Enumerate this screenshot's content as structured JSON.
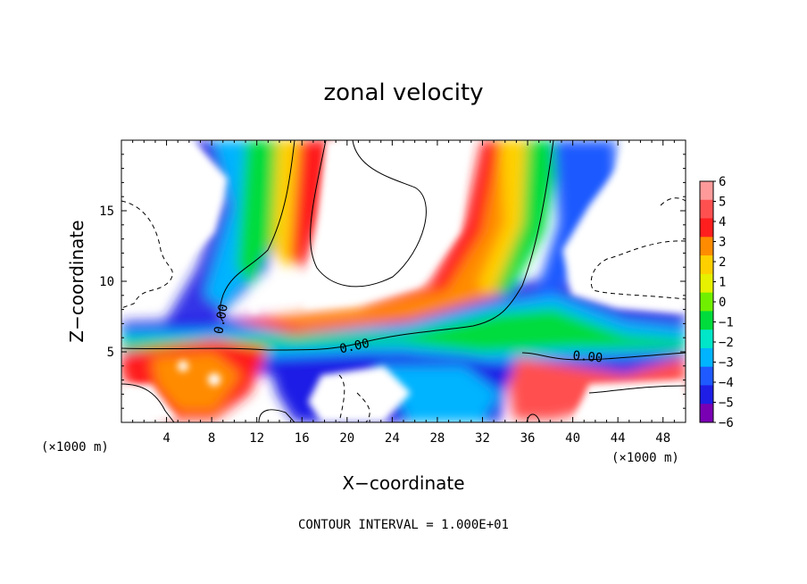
{
  "chart_data": {
    "type": "contour",
    "title": "zonal velocity",
    "xlabel": "X−coordinate",
    "ylabel": "Z−coordinate",
    "x_unit_left": "(×1000 m)",
    "x_unit_right": "(×1000 m)",
    "xlim": [
      0,
      50
    ],
    "ylim": [
      0,
      20
    ],
    "x_ticks": [
      4,
      8,
      12,
      16,
      20,
      24,
      28,
      32,
      36,
      40,
      44,
      48
    ],
    "x_tick_labels": [
      "4",
      "8",
      "12",
      "16",
      "20",
      "24",
      "28",
      "32",
      "36",
      "40",
      "44",
      "48"
    ],
    "y_ticks": [
      5,
      10,
      15
    ],
    "y_tick_labels": [
      "5",
      "10",
      "15"
    ],
    "contour_labels": [
      {
        "text": "0.00",
        "x": 8.5,
        "z": 8.5,
        "angle": -80
      },
      {
        "text": "0.00",
        "x": 21,
        "z": 5.3,
        "angle": -12
      },
      {
        "text": "0.00",
        "x": 42,
        "z": 4.4,
        "angle": 5
      }
    ],
    "colorbar": {
      "levels": [
        6,
        5,
        4,
        3,
        2,
        1,
        0,
        -1,
        -2,
        -3,
        -4,
        -5,
        -6
      ],
      "labels": [
        "6",
        "5",
        "4",
        "3",
        "2",
        "1",
        "0",
        "−1",
        "−2",
        "−3",
        "−4",
        "−5",
        "−6"
      ],
      "colors": [
        "#ff9a9a",
        "#ff5050",
        "#ff1e1e",
        "#ff8c00",
        "#ffd000",
        "#e6f000",
        "#70f000",
        "#00dc3c",
        "#00e6c8",
        "#00b4ff",
        "#1e5aff",
        "#1e1ee6",
        "#7a00b4"
      ]
    },
    "footer": "CONTOUR INTERVAL = 1.000E+01"
  }
}
